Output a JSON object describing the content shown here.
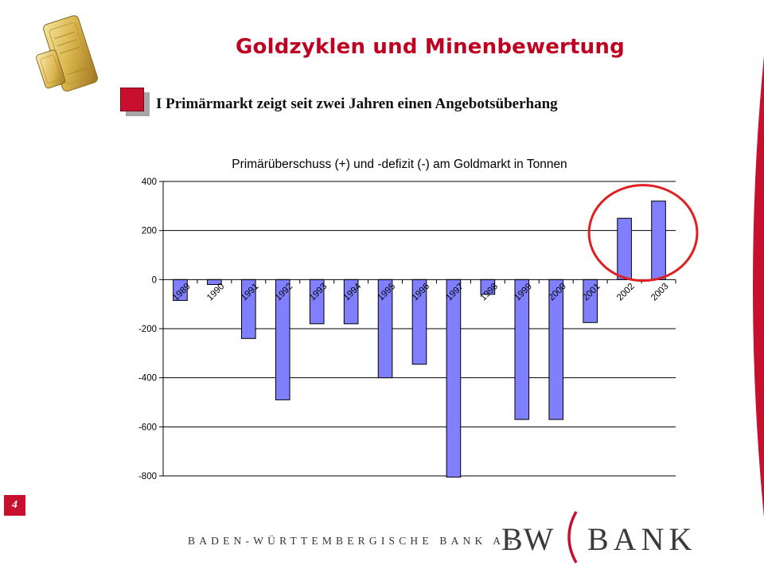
{
  "header": {
    "title": "Goldzyklen und Minenbewertung",
    "subtitle": "I Primärmarkt zeigt seit zwei Jahren einen Angebotsüberhang"
  },
  "logo": {
    "icon": "gold-bar-icon"
  },
  "chart_data": {
    "type": "bar",
    "title": "Primärüberschuss (+) und -defizit (-) am Goldmarkt in Tonnen",
    "xlabel": "",
    "ylabel": "",
    "categories": [
      "1989",
      "1990",
      "1991",
      "1992",
      "1993",
      "1994",
      "1995",
      "1996",
      "1997",
      "1998",
      "1999",
      "2000",
      "2001",
      "2002",
      "2003"
    ],
    "values": [
      -85,
      -20,
      -240,
      -490,
      -180,
      -180,
      -400,
      -345,
      -805,
      -60,
      -570,
      -570,
      -175,
      250,
      320
    ],
    "ylim": [
      -800,
      400
    ],
    "yticks": [
      "400",
      "200",
      "0",
      "-200",
      "-400",
      "-600",
      "-800"
    ],
    "grid": true,
    "legend": "none",
    "bar_color": "#8080ff",
    "highlight_color": "#e02020",
    "highlighted_categories": [
      "2002",
      "2003"
    ]
  },
  "footer": {
    "page_number": "4",
    "bank_name": "BADEN-WÜRTTEMBERGISCHE BANK AG",
    "logo_left": "BW",
    "logo_right": "BANK",
    "accent_color": "#c8102e"
  }
}
